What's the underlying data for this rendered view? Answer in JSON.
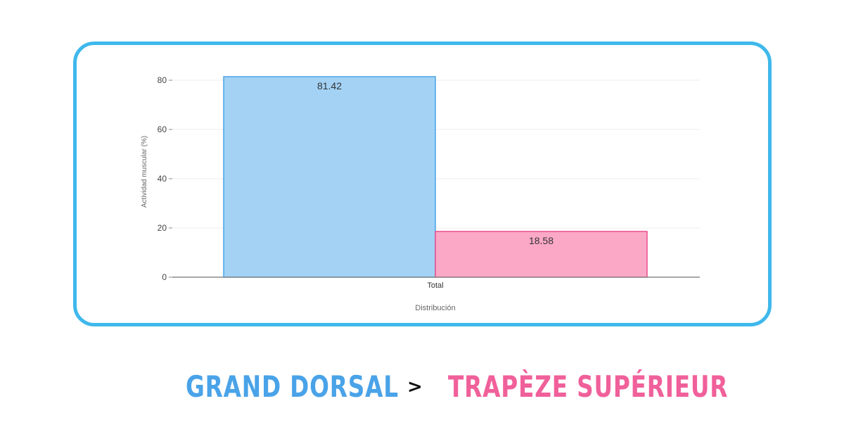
{
  "colors": {
    "frame": "#3fb8ec",
    "series_left_fill": "#a3d2f5",
    "series_left_stroke": "#4aa3e8",
    "series_right_fill": "#fba8c6",
    "series_right_stroke": "#ea4f8c",
    "caption_left": "#4aa3e8",
    "caption_right": "#f0609a"
  },
  "chart_data": {
    "type": "bar",
    "categories": [
      "Total"
    ],
    "series": [
      {
        "values": [
          81.42
        ]
      },
      {
        "values": [
          18.58
        ]
      }
    ],
    "data_labels": [
      "81.42",
      "18.58"
    ],
    "xlabel": "Distribución",
    "ylabel": "Actividad muscular (%)",
    "ylim": [
      0,
      80
    ],
    "yticks": [
      0,
      20,
      40,
      60,
      80
    ],
    "grid": true,
    "legend": "none"
  },
  "captions": {
    "left": "GRAND DORSAL",
    "separator": ">",
    "right": "TRAPÈZE SUPÉRIEUR"
  }
}
